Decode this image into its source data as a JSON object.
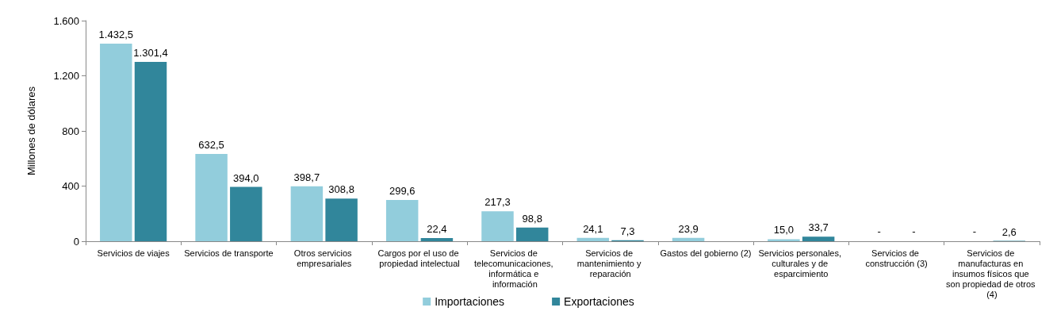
{
  "chart_data": {
    "type": "bar",
    "ylabel": "Millones de dólares",
    "categories": [
      "Servicios de viajes",
      "Servicios de transporte",
      "Otros servicios empresariales",
      "Cargos por el uso de propiedad intelectual",
      "Servicios de telecomunicaciones, informática e información",
      "Servicios de mantenimiento y reparación",
      "Gastos del gobierno (2)",
      "Servicios personales, culturales y de esparcimiento",
      "Servicios de construcción (3)",
      "Servicios de manufacturas en insumos físicos que son propiedad de otros (4)"
    ],
    "series": [
      {
        "name": "Importaciones",
        "color": "#92cddc",
        "values": [
          1432.5,
          632.5,
          398.7,
          299.6,
          217.3,
          24.1,
          23.9,
          15.0,
          null,
          null
        ],
        "value_labels": [
          "1.432,5",
          "632,5",
          "398,7",
          "299,6",
          "217,3",
          "24,1",
          "23,9",
          "15,0",
          null,
          null
        ]
      },
      {
        "name": "Exportaciones",
        "color": "#31869b",
        "values": [
          1301.4,
          394.0,
          308.8,
          22.4,
          98.8,
          7.3,
          null,
          33.7,
          null,
          2.6
        ],
        "value_labels": [
          "1.301,4",
          "394,0",
          "308,8",
          "22,4",
          "98,8",
          "7,3",
          null,
          "33,7",
          null,
          "2,6"
        ]
      }
    ],
    "annotations": [
      "-",
      "-",
      "-"
    ],
    "ylim": [
      0,
      1600
    ],
    "yticks": [
      0,
      400,
      800,
      {
        "value": 1200,
        "label": "1.200"
      },
      {
        "value": 1600,
        "label": "1.600"
      }
    ],
    "grid": false,
    "legend": "bottom"
  }
}
